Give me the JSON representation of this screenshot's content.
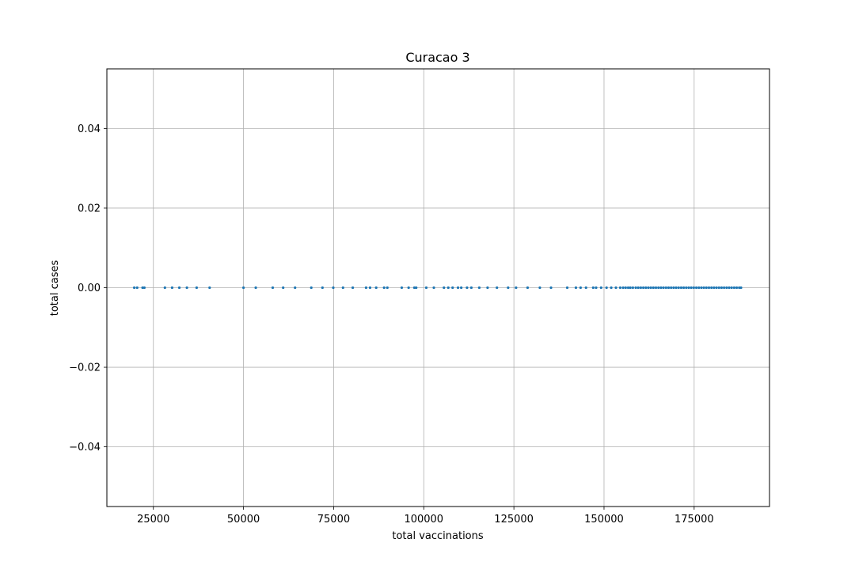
{
  "chart_data": {
    "type": "scatter",
    "title": "Curacao 3",
    "xlabel": "total vaccinations",
    "ylabel": "total cases",
    "xlim": [
      12100,
      195900
    ],
    "ylim": [
      -0.055,
      0.055
    ],
    "grid": true,
    "x_ticks": [
      {
        "value": 25000,
        "label": "25000"
      },
      {
        "value": 50000,
        "label": "50000"
      },
      {
        "value": 75000,
        "label": "75000"
      },
      {
        "value": 100000,
        "label": "100000"
      },
      {
        "value": 125000,
        "label": "125000"
      },
      {
        "value": 150000,
        "label": "150000"
      },
      {
        "value": 175000,
        "label": "175000"
      }
    ],
    "y_ticks": [
      {
        "value": 0.04,
        "label": "0.04"
      },
      {
        "value": 0.02,
        "label": "0.02"
      },
      {
        "value": 0.0,
        "label": "0.00"
      },
      {
        "value": -0.02,
        "label": "−0.02"
      },
      {
        "value": -0.04,
        "label": "−0.04"
      }
    ],
    "series": [
      {
        "color": "#1f77b4",
        "x": [
          19700,
          20500,
          22000,
          22500,
          28200,
          30200,
          32200,
          34300,
          37000,
          40600,
          50000,
          53400,
          58100,
          61000,
          64300,
          68800,
          71900,
          74900,
          77600,
          80300,
          84000,
          85100,
          86800,
          89000,
          89900,
          93900,
          95800,
          97400,
          97900,
          100700,
          102800,
          105600,
          106800,
          108000,
          109500,
          110400,
          112000,
          113200,
          115400,
          117700,
          120300,
          123400,
          125600,
          128800,
          132200,
          135300,
          139800,
          142200,
          143500,
          145000,
          147000,
          147800,
          149200,
          150700,
          152000,
          153300,
          154500,
          155300,
          156000,
          156700,
          157300,
          158000,
          158800,
          159500,
          160200,
          160900,
          161600,
          162300,
          163000,
          163700,
          164400,
          165100,
          165800,
          166500,
          167200,
          167900,
          168600,
          169300,
          170000,
          170700,
          171400,
          172100,
          172800,
          173500,
          174200,
          174900,
          175600,
          176300,
          177000,
          177700,
          178400,
          179100,
          179800,
          180500,
          181200,
          181900,
          182600,
          183300,
          184000,
          184700,
          185400,
          186100,
          186800,
          187500,
          188000
        ],
        "y": [
          0,
          0,
          0,
          0,
          0,
          0,
          0,
          0,
          0,
          0,
          0,
          0,
          0,
          0,
          0,
          0,
          0,
          0,
          0,
          0,
          0,
          0,
          0,
          0,
          0,
          0,
          0,
          0,
          0,
          0,
          0,
          0,
          0,
          0,
          0,
          0,
          0,
          0,
          0,
          0,
          0,
          0,
          0,
          0,
          0,
          0,
          0,
          0,
          0,
          0,
          0,
          0,
          0,
          0,
          0,
          0,
          0,
          0,
          0,
          0,
          0,
          0,
          0,
          0,
          0,
          0,
          0,
          0,
          0,
          0,
          0,
          0,
          0,
          0,
          0,
          0,
          0,
          0,
          0,
          0,
          0,
          0,
          0,
          0,
          0,
          0,
          0,
          0,
          0,
          0,
          0,
          0,
          0,
          0,
          0,
          0,
          0,
          0,
          0,
          0,
          0,
          0,
          0,
          0,
          0
        ]
      }
    ]
  }
}
